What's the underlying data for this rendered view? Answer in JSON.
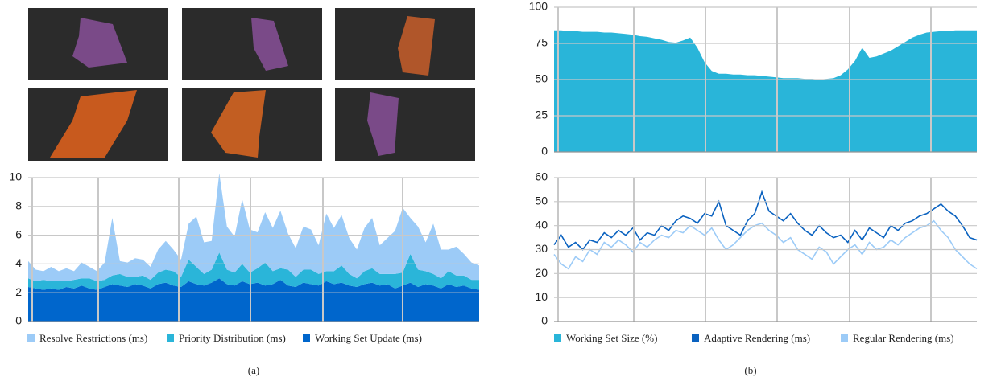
{
  "chart_data": [
    {
      "type": "stacked_area",
      "ylim": [
        0,
        10
      ],
      "yticks": [
        0,
        2,
        4,
        6,
        8,
        10
      ],
      "grid": true,
      "series": [
        {
          "name": "Resolve Restrictions (ms)",
          "color": "#9ccbf7",
          "values": [
            1.2,
            0.8,
            0.6,
            1.0,
            0.7,
            0.9,
            0.6,
            1.1,
            0.8,
            0.7,
            1.2,
            4.0,
            0.9,
            1.0,
            1.3,
            1.1,
            0.9,
            1.6,
            2.0,
            1.5,
            1.2,
            2.5,
            3.5,
            2.2,
            2.0,
            5.5,
            3.0,
            2.5,
            4.5,
            3.0,
            2.5,
            3.5,
            3.0,
            4.0,
            2.5,
            2.0,
            3.0,
            2.8,
            2.0,
            4.0,
            3.0,
            3.5,
            2.5,
            2.0,
            3.0,
            3.5,
            2.0,
            2.5,
            3.0,
            4.5,
            2.5,
            3.0,
            2.0,
            3.5,
            2.0,
            1.5,
            2.0,
            1.5,
            1.2,
            1.0
          ]
        },
        {
          "name": "Priority Distribution (ms)",
          "color": "#2ab5d9",
          "values": [
            0.6,
            0.5,
            0.7,
            0.5,
            0.6,
            0.4,
            0.6,
            0.5,
            0.7,
            0.6,
            0.5,
            0.6,
            0.8,
            0.7,
            0.5,
            0.7,
            0.6,
            0.8,
            0.9,
            1.0,
            0.7,
            1.5,
            1.2,
            0.8,
            0.9,
            1.8,
            1.0,
            0.9,
            1.2,
            0.8,
            1.0,
            1.6,
            0.9,
            0.8,
            1.1,
            0.7,
            0.9,
            1.0,
            0.8,
            0.7,
            0.9,
            1.2,
            0.8,
            0.6,
            0.9,
            1.0,
            0.8,
            0.7,
            1.0,
            0.9,
            2.0,
            1.2,
            0.9,
            0.8,
            0.7,
            0.9,
            0.8,
            0.7,
            0.6,
            0.7
          ]
        },
        {
          "name": "Working Set Update (ms)",
          "color": "#0066cc",
          "values": [
            2.4,
            2.3,
            2.2,
            2.3,
            2.2,
            2.4,
            2.3,
            2.5,
            2.3,
            2.2,
            2.4,
            2.6,
            2.5,
            2.4,
            2.6,
            2.5,
            2.3,
            2.6,
            2.7,
            2.5,
            2.4,
            2.8,
            2.6,
            2.5,
            2.7,
            3.0,
            2.6,
            2.5,
            2.8,
            2.6,
            2.7,
            2.5,
            2.6,
            2.9,
            2.5,
            2.4,
            2.7,
            2.6,
            2.5,
            2.8,
            2.6,
            2.7,
            2.5,
            2.4,
            2.6,
            2.7,
            2.5,
            2.6,
            2.3,
            2.5,
            2.7,
            2.4,
            2.6,
            2.5,
            2.3,
            2.6,
            2.4,
            2.5,
            2.3,
            2.2
          ]
        }
      ]
    },
    {
      "type": "area",
      "ylim": [
        0,
        100
      ],
      "yticks": [
        0,
        25,
        50,
        75,
        100
      ],
      "grid": true,
      "series": [
        {
          "name": "Working Set Size (%)",
          "color": "#29b5d9",
          "values": [
            84,
            84,
            83.5,
            83.5,
            83,
            83,
            83,
            82.5,
            82.5,
            82,
            81.5,
            81,
            80,
            79.5,
            78.5,
            77.5,
            76,
            75.5,
            77,
            79,
            72,
            62,
            56,
            54,
            54,
            53.5,
            53.5,
            53,
            53,
            52.5,
            52,
            51.5,
            51,
            51,
            51,
            50.5,
            50.5,
            50,
            50.5,
            51,
            53,
            57,
            63,
            72,
            65,
            66,
            68,
            70,
            73,
            76,
            79,
            81,
            82.5,
            83,
            83.5,
            83.5,
            84,
            84,
            84,
            84
          ]
        }
      ]
    },
    {
      "type": "line",
      "ylim": [
        0,
        60
      ],
      "yticks": [
        0,
        10,
        20,
        30,
        40,
        50,
        60
      ],
      "grid": true,
      "series": [
        {
          "name": "Adaptive Rendering (ms)",
          "color": "#0a62c0",
          "values": [
            32,
            36,
            31,
            33,
            30,
            34,
            33,
            37,
            35,
            38,
            36,
            39,
            34,
            37,
            36,
            40,
            38,
            42,
            44,
            43,
            41,
            45,
            44,
            50,
            40,
            38,
            36,
            42,
            45,
            54,
            46,
            44,
            42,
            45,
            41,
            38,
            36,
            40,
            37,
            35,
            36,
            33,
            38,
            34,
            39,
            37,
            35,
            40,
            38,
            41,
            42,
            44,
            45,
            47,
            49,
            46,
            44,
            40,
            35,
            34
          ]
        },
        {
          "name": "Regular Rendering (ms)",
          "color": "#9ccbf7",
          "values": [
            28,
            24,
            22,
            27,
            25,
            30,
            28,
            33,
            31,
            34,
            32,
            29,
            33,
            31,
            34,
            36,
            35,
            38,
            37,
            40,
            38,
            36,
            39,
            34,
            30,
            32,
            35,
            38,
            40,
            41,
            38,
            36,
            33,
            35,
            30,
            28,
            26,
            31,
            29,
            24,
            27,
            30,
            32,
            28,
            33,
            30,
            31,
            34,
            32,
            35,
            37,
            39,
            40,
            42,
            38,
            35,
            30,
            27,
            24,
            22
          ]
        }
      ]
    }
  ],
  "captions": [
    "(a)",
    "(b)"
  ]
}
